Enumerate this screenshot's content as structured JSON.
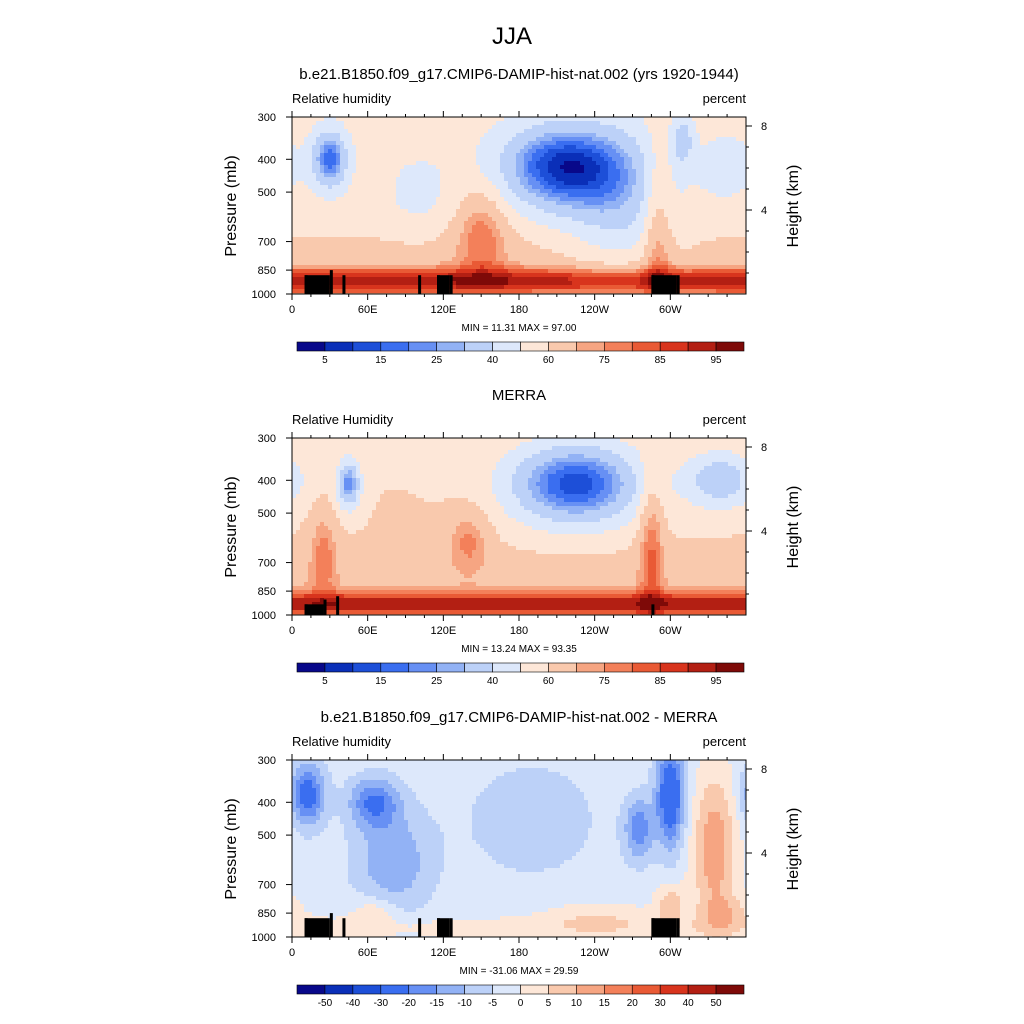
{
  "figure": {
    "title": "JJA"
  },
  "chart_data": [
    {
      "type": "heatmap",
      "title": "b.e21.B1850.f09_g17.CMIP6-DAMIP-hist-nat.002 (yrs 1920-1944)",
      "left_string": "Relative humidity",
      "right_string": "percent",
      "xlabel": "",
      "ylabel": "Pressure (mb)",
      "ylabel_right": "Height (km)",
      "x_ticks": [
        "0",
        "60E",
        "120E",
        "180",
        "120W",
        "60W"
      ],
      "x_tick_values": [
        0,
        60,
        120,
        180,
        240,
        300
      ],
      "xlim": [
        0,
        360
      ],
      "y_ticks": [
        "300",
        "400",
        "500",
        "700",
        "850",
        "1000"
      ],
      "y_tick_values": [
        300,
        400,
        500,
        700,
        850,
        1000
      ],
      "ylim": [
        1000,
        300
      ],
      "y_scale": "log",
      "right_ticks": [
        "8",
        "4"
      ],
      "right_tick_values": [
        8,
        4
      ],
      "stats": "MIN =  11.31  MAX =  97.00",
      "colorbar": {
        "labels": [
          "5",
          "15",
          "25",
          "40",
          "60",
          "75",
          "85",
          "95"
        ],
        "levels": [
          5,
          10,
          15,
          20,
          25,
          30,
          40,
          50,
          60,
          70,
          75,
          80,
          85,
          90,
          95
        ],
        "colors": [
          "#08088a",
          "#0a2fb8",
          "#1d4fd8",
          "#3a6ef0",
          "#6790f4",
          "#92b2f5",
          "#bcd1f8",
          "#dde8fb",
          "#fde7d8",
          "#f9c9ad",
          "#f6a582",
          "#f3805a",
          "#e95a35",
          "#d8341d",
          "#b31f13",
          "#7e0a08"
        ]
      },
      "field": {
        "base": 55,
        "features": [
          {
            "lon": 30,
            "p": 400,
            "amp": -38,
            "slon": 10,
            "slp": 0.14
          },
          {
            "lon": 150,
            "p": 650,
            "amp": 20,
            "slon": 15,
            "slp": 0.22
          },
          {
            "lon": 215,
            "p": 420,
            "amp": -46,
            "slon": 35,
            "slp": 0.2
          },
          {
            "lon": 260,
            "p": 550,
            "amp": -18,
            "slon": 30,
            "slp": 0.35
          },
          {
            "lon": 290,
            "p": 650,
            "amp": 18,
            "slon": 8,
            "slp": 0.4
          },
          {
            "lon": 310,
            "p": 350,
            "amp": -20,
            "slon": 6,
            "slp": 0.12
          },
          {
            "lon": 345,
            "p": 420,
            "amp": -12,
            "slon": 15,
            "slp": 0.15
          },
          {
            "lon": 100,
            "p": 500,
            "amp": -8,
            "slon": 20,
            "slp": 0.2
          }
        ],
        "bands": [
          {
            "p": 920,
            "amp": 34,
            "slp": 0.07
          },
          {
            "p": 780,
            "amp": 8,
            "slp": 0.15
          }
        ]
      },
      "topography": [
        [
          10,
          880
        ],
        [
          30,
          850
        ],
        [
          40,
          880
        ],
        [
          100,
          880
        ],
        [
          115,
          880
        ],
        [
          125,
          880
        ],
        [
          285,
          880
        ],
        [
          305,
          880
        ]
      ]
    },
    {
      "type": "heatmap",
      "title": "MERRA",
      "left_string": "Relative Humidity",
      "right_string": "percent",
      "xlabel": "",
      "ylabel": "Pressure (mb)",
      "ylabel_right": "Height (km)",
      "x_ticks": [
        "0",
        "60E",
        "120E",
        "180",
        "120W",
        "60W"
      ],
      "x_tick_values": [
        0,
        60,
        120,
        180,
        240,
        300
      ],
      "xlim": [
        0,
        360
      ],
      "y_ticks": [
        "300",
        "400",
        "500",
        "700",
        "850",
        "1000"
      ],
      "y_tick_values": [
        300,
        400,
        500,
        700,
        850,
        1000
      ],
      "ylim": [
        1000,
        300
      ],
      "y_scale": "log",
      "right_ticks": [
        "8",
        "4"
      ],
      "right_tick_values": [
        8,
        4
      ],
      "stats": "MIN =  13.24  MAX =  93.35",
      "colorbar": {
        "labels": [
          "5",
          "15",
          "25",
          "40",
          "60",
          "75",
          "85",
          "95"
        ],
        "levels": [
          5,
          10,
          15,
          20,
          25,
          30,
          40,
          50,
          60,
          70,
          75,
          80,
          85,
          90,
          95
        ],
        "colors": [
          "#08088a",
          "#0a2fb8",
          "#1d4fd8",
          "#3a6ef0",
          "#6790f4",
          "#92b2f5",
          "#bcd1f8",
          "#dde8fb",
          "#fde7d8",
          "#f9c9ad",
          "#f6a582",
          "#f3805a",
          "#e95a35",
          "#d8341d",
          "#b31f13",
          "#7e0a08"
        ]
      },
      "field": {
        "base": 60,
        "features": [
          {
            "lon": 45,
            "p": 410,
            "amp": -38,
            "slon": 7,
            "slp": 0.12
          },
          {
            "lon": 140,
            "p": 600,
            "amp": 16,
            "slon": 12,
            "slp": 0.15
          },
          {
            "lon": 95,
            "p": 620,
            "amp": 8,
            "slon": 15,
            "slp": 0.12
          },
          {
            "lon": 225,
            "p": 410,
            "amp": -48,
            "slon": 38,
            "slp": 0.2
          },
          {
            "lon": 285,
            "p": 600,
            "amp": 20,
            "slon": 7,
            "slp": 0.35
          },
          {
            "lon": 340,
            "p": 400,
            "amp": -28,
            "slon": 20,
            "slp": 0.14
          },
          {
            "lon": 25,
            "p": 650,
            "amp": 16,
            "slon": 8,
            "slp": 0.2
          }
        ],
        "bands": [
          {
            "p": 930,
            "amp": 30,
            "slp": 0.06
          },
          {
            "p": 800,
            "amp": 6,
            "slp": 0.15
          }
        ]
      },
      "topography": [
        [
          10,
          930
        ],
        [
          25,
          900
        ],
        [
          35,
          880
        ],
        [
          285,
          930
        ]
      ]
    },
    {
      "type": "heatmap",
      "title": "b.e21.B1850.f09_g17.CMIP6-DAMIP-hist-nat.002 - MERRA",
      "left_string": "Relative humidity",
      "right_string": "percent",
      "xlabel": "",
      "ylabel": "Pressure (mb)",
      "ylabel_right": "Height (km)",
      "x_ticks": [
        "0",
        "60E",
        "120E",
        "180",
        "120W",
        "60W"
      ],
      "x_tick_values": [
        0,
        60,
        120,
        180,
        240,
        300
      ],
      "xlim": [
        0,
        360
      ],
      "y_ticks": [
        "300",
        "400",
        "500",
        "700",
        "850",
        "1000"
      ],
      "y_tick_values": [
        300,
        400,
        500,
        700,
        850,
        1000
      ],
      "ylim": [
        1000,
        300
      ],
      "y_scale": "log",
      "right_ticks": [
        "8",
        "4"
      ],
      "right_tick_values": [
        8,
        4
      ],
      "stats": "MIN = -31.06  MAX =  29.59",
      "colorbar": {
        "labels": [
          "-50",
          "-40",
          "-30",
          "-20",
          "-15",
          "-10",
          "-5",
          "0",
          "5",
          "10",
          "15",
          "20",
          "30",
          "40",
          "50"
        ],
        "levels": [
          -50,
          -40,
          -30,
          -20,
          -15,
          -10,
          -5,
          0,
          5,
          10,
          15,
          20,
          30,
          40,
          50
        ],
        "colors": [
          "#08088a",
          "#0a2fb8",
          "#1d4fd8",
          "#3a6ef0",
          "#6790f4",
          "#92b2f5",
          "#bcd1f8",
          "#dde8fb",
          "#fde7d8",
          "#f9c9ad",
          "#f6a582",
          "#f3805a",
          "#e95a35",
          "#d8341d",
          "#b31f13",
          "#7e0a08"
        ]
      },
      "field": {
        "base": -2,
        "features": [
          {
            "lon": 12,
            "p": 380,
            "amp": -22,
            "slon": 10,
            "slp": 0.15
          },
          {
            "lon": 65,
            "p": 400,
            "amp": -18,
            "slon": 14,
            "slp": 0.12
          },
          {
            "lon": 80,
            "p": 600,
            "amp": -12,
            "slon": 22,
            "slp": 0.25
          },
          {
            "lon": 300,
            "p": 380,
            "amp": -26,
            "slon": 8,
            "slp": 0.25
          },
          {
            "lon": 275,
            "p": 480,
            "amp": -16,
            "slon": 8,
            "slp": 0.15
          },
          {
            "lon": 335,
            "p": 550,
            "amp": 16,
            "slon": 12,
            "slp": 0.35
          },
          {
            "lon": 65,
            "p": 850,
            "amp": 8,
            "slon": 12,
            "slp": 0.08
          },
          {
            "lon": 345,
            "p": 850,
            "amp": 8,
            "slon": 14,
            "slp": 0.08
          },
          {
            "lon": 300,
            "p": 800,
            "amp": 10,
            "slon": 8,
            "slp": 0.1
          },
          {
            "lon": 240,
            "p": 880,
            "amp": 6,
            "slon": 30,
            "slp": 0.08
          },
          {
            "lon": 190,
            "p": 450,
            "amp": -6,
            "slon": 40,
            "slp": 0.3
          }
        ],
        "bands": [
          {
            "p": 940,
            "amp": 4,
            "slp": 0.06
          }
        ]
      },
      "topography": [
        [
          10,
          880
        ],
        [
          30,
          850
        ],
        [
          40,
          880
        ],
        [
          100,
          880
        ],
        [
          115,
          880
        ],
        [
          125,
          880
        ],
        [
          285,
          880
        ],
        [
          305,
          880
        ]
      ]
    }
  ]
}
